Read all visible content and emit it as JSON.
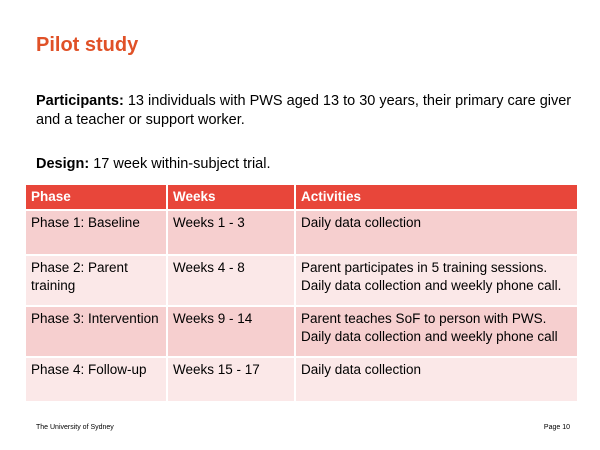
{
  "title": "Pilot study",
  "participants": {
    "label": "Participants:",
    "text": " 13 individuals with PWS aged 13 to 30 years, their primary care giver and a teacher or support worker."
  },
  "design": {
    "label": "Design:",
    "text": " 17 week within-subject trial."
  },
  "table": {
    "headers": [
      "Phase",
      "Weeks",
      "Activities"
    ],
    "rows": [
      {
        "phase": "Phase 1: Baseline",
        "weeks": "Weeks 1 - 3",
        "activities": "Daily data collection"
      },
      {
        "phase": "Phase 2: Parent training",
        "weeks": "Weeks 4 - 8",
        "activities": "Parent participates in 5 training sessions. Daily data collection and weekly phone call."
      },
      {
        "phase": "Phase 3: Intervention",
        "weeks": "Weeks 9 - 14",
        "activities": "Parent teaches SoF to person with PWS. Daily data collection and weekly phone call"
      },
      {
        "phase": "Phase 4: Follow-up",
        "weeks": "Weeks 15 - 17",
        "activities": "Daily data collection"
      }
    ]
  },
  "footer": {
    "left": "The University of Sydney",
    "right": "Page 10"
  },
  "colors": {
    "title": "#e05127",
    "header_bg": "#e8463a",
    "row_dark": "#f6cfcf",
    "row_light": "#fbe8e8"
  }
}
